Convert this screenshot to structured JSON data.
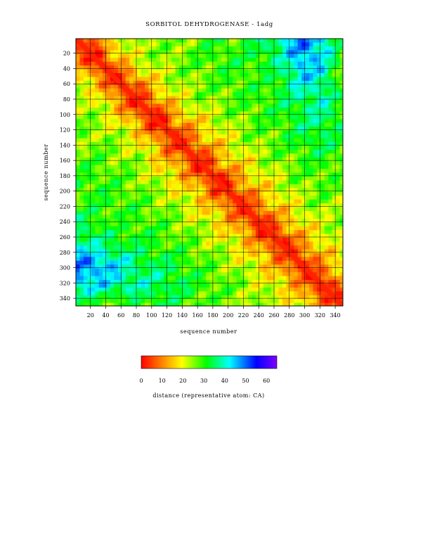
{
  "chart_data": {
    "type": "heatmap",
    "title": "SORBITOL DEHYDROGENASE - 1adg",
    "xlabel": "sequence number",
    "ylabel": "sequence number",
    "x_range": [
      1,
      350
    ],
    "y_range": [
      1,
      350
    ],
    "x_ticks": [
      20,
      40,
      60,
      80,
      100,
      120,
      140,
      160,
      180,
      200,
      220,
      240,
      260,
      280,
      300,
      320,
      340
    ],
    "y_ticks": [
      20,
      40,
      60,
      80,
      100,
      120,
      140,
      160,
      180,
      200,
      220,
      240,
      260,
      280,
      300,
      320,
      340
    ],
    "grid": true,
    "colorbar": {
      "label": "distance (representative atom: CA)",
      "range": [
        0,
        65
      ],
      "ticks": [
        0,
        10,
        20,
        30,
        40,
        50,
        60
      ],
      "colors": [
        "#ff0000",
        "#ff8000",
        "#ffff00",
        "#00ff00",
        "#00ffff",
        "#0000ff",
        "#8000ff"
      ]
    },
    "grid_rows_sampled": 14,
    "distance_matrix_approx": [
      [
        0,
        12,
        20,
        24,
        26,
        24,
        28,
        30,
        28,
        35,
        40,
        50,
        44,
        30
      ],
      [
        12,
        0,
        14,
        22,
        24,
        26,
        28,
        30,
        30,
        32,
        36,
        48,
        42,
        28
      ],
      [
        20,
        14,
        0,
        12,
        20,
        24,
        26,
        28,
        30,
        28,
        34,
        42,
        40,
        26
      ],
      [
        24,
        22,
        12,
        0,
        12,
        20,
        24,
        26,
        28,
        30,
        32,
        36,
        38,
        30
      ],
      [
        26,
        24,
        20,
        12,
        0,
        12,
        18,
        22,
        26,
        28,
        30,
        34,
        36,
        32
      ],
      [
        24,
        26,
        24,
        20,
        12,
        0,
        12,
        18,
        22,
        26,
        28,
        32,
        34,
        30
      ],
      [
        28,
        28,
        26,
        24,
        18,
        12,
        0,
        12,
        18,
        22,
        26,
        28,
        30,
        28
      ],
      [
        30,
        30,
        28,
        26,
        22,
        18,
        12,
        0,
        12,
        18,
        22,
        26,
        28,
        26
      ],
      [
        28,
        30,
        30,
        28,
        26,
        22,
        18,
        12,
        0,
        12,
        18,
        22,
        26,
        24
      ],
      [
        35,
        32,
        28,
        30,
        28,
        26,
        22,
        18,
        12,
        0,
        12,
        18,
        22,
        24
      ],
      [
        40,
        36,
        34,
        32,
        30,
        28,
        26,
        22,
        18,
        12,
        0,
        12,
        18,
        22
      ],
      [
        50,
        48,
        42,
        36,
        34,
        32,
        28,
        26,
        22,
        18,
        12,
        0,
        12,
        18
      ],
      [
        44,
        42,
        40,
        38,
        36,
        34,
        30,
        28,
        26,
        22,
        18,
        12,
        0,
        12
      ],
      [
        30,
        28,
        26,
        30,
        32,
        30,
        28,
        26,
        24,
        24,
        22,
        18,
        12,
        0
      ]
    ]
  }
}
